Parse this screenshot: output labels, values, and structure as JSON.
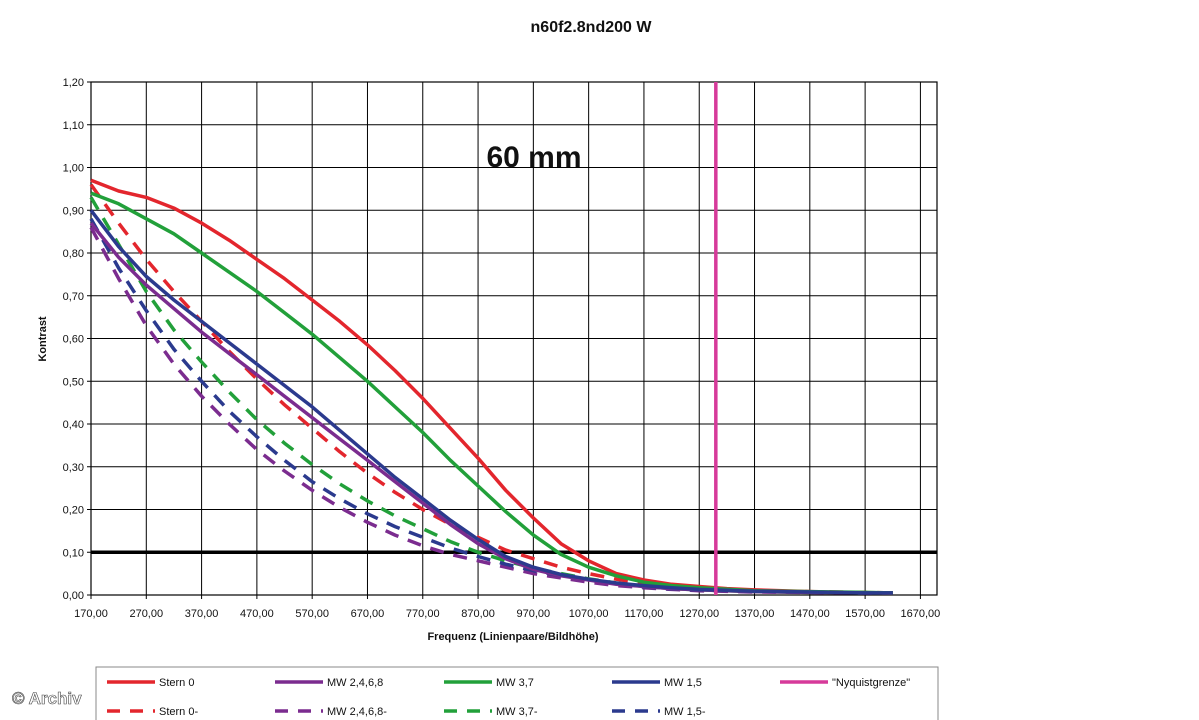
{
  "chart_data": {
    "type": "line",
    "title": "n60f2.8nd200 W",
    "annotation": "60 mm",
    "xlabel": "Frequenz (Linienpaare/Bildhöhe)",
    "ylabel": "Kontrast",
    "xlim": [
      170,
      1700
    ],
    "ylim": [
      0,
      1.2
    ],
    "x_ticks": [
      "170,00",
      "270,00",
      "370,00",
      "470,00",
      "570,00",
      "670,00",
      "770,00",
      "870,00",
      "970,00",
      "1070,00",
      "1170,00",
      "1270,00",
      "1370,00",
      "1470,00",
      "1570,00",
      "1670,00"
    ],
    "y_ticks": [
      "0,00",
      "0,10",
      "0,20",
      "0,30",
      "0,40",
      "0,50",
      "0,60",
      "0,70",
      "0,80",
      "0,90",
      "1,00",
      "1,10",
      "1,20"
    ],
    "grid": true,
    "legend_position": "bottom",
    "series": [
      {
        "name": "Stern 0",
        "color": "#e3262d",
        "dash": false,
        "x": [
          170,
          220,
          270,
          320,
          370,
          420,
          470,
          520,
          570,
          620,
          670,
          720,
          770,
          820,
          870,
          920,
          970,
          1020,
          1070,
          1120,
          1170,
          1220,
          1270,
          1320,
          1370,
          1420,
          1470,
          1520,
          1620
        ],
        "y": [
          0.97,
          0.945,
          0.93,
          0.905,
          0.87,
          0.83,
          0.785,
          0.74,
          0.69,
          0.64,
          0.585,
          0.525,
          0.46,
          0.39,
          0.32,
          0.245,
          0.18,
          0.12,
          0.08,
          0.05,
          0.035,
          0.025,
          0.02,
          0.015,
          0.012,
          0.01,
          0.008,
          0.006,
          0.005
        ]
      },
      {
        "name": "MW 2,4,6,8",
        "color": "#7b2c8f",
        "dash": false,
        "x": [
          170,
          220,
          270,
          320,
          370,
          420,
          470,
          520,
          570,
          620,
          670,
          720,
          770,
          820,
          870,
          920,
          970,
          1020,
          1070,
          1120,
          1170,
          1220,
          1270,
          1370,
          1470,
          1570,
          1620
        ],
        "y": [
          0.87,
          0.79,
          0.725,
          0.67,
          0.615,
          0.565,
          0.515,
          0.465,
          0.415,
          0.365,
          0.315,
          0.265,
          0.215,
          0.165,
          0.12,
          0.085,
          0.06,
          0.045,
          0.035,
          0.025,
          0.02,
          0.015,
          0.012,
          0.008,
          0.006,
          0.005,
          0.005
        ]
      },
      {
        "name": "MW 3,7",
        "color": "#22a03a",
        "dash": false,
        "x": [
          170,
          220,
          270,
          320,
          370,
          420,
          470,
          520,
          570,
          620,
          670,
          720,
          770,
          820,
          870,
          920,
          970,
          1020,
          1070,
          1120,
          1170,
          1220,
          1270,
          1370,
          1470,
          1570,
          1620
        ],
        "y": [
          0.94,
          0.915,
          0.88,
          0.845,
          0.8,
          0.755,
          0.71,
          0.66,
          0.61,
          0.555,
          0.5,
          0.44,
          0.38,
          0.315,
          0.255,
          0.195,
          0.14,
          0.095,
          0.065,
          0.045,
          0.03,
          0.022,
          0.017,
          0.01,
          0.008,
          0.006,
          0.005
        ]
      },
      {
        "name": "MW 1,5",
        "color": "#2b3a8e",
        "dash": false,
        "x": [
          170,
          220,
          270,
          320,
          370,
          420,
          470,
          520,
          570,
          620,
          670,
          720,
          770,
          820,
          870,
          920,
          970,
          1020,
          1070,
          1120,
          1170,
          1220,
          1270,
          1370,
          1470,
          1570,
          1620
        ],
        "y": [
          0.9,
          0.815,
          0.745,
          0.69,
          0.64,
          0.59,
          0.54,
          0.49,
          0.44,
          0.385,
          0.33,
          0.275,
          0.225,
          0.175,
          0.13,
          0.09,
          0.065,
          0.048,
          0.037,
          0.028,
          0.022,
          0.017,
          0.013,
          0.009,
          0.007,
          0.005,
          0.005
        ]
      },
      {
        "name": "\"Nyquistgrenze\"",
        "color": "#d63a9a",
        "dash": false,
        "vertical_at_x": 1300,
        "x": [
          1300,
          1300
        ],
        "y": [
          0,
          1.2
        ]
      },
      {
        "name": "Stern 0-",
        "color": "#e3262d",
        "dash": true,
        "x": [
          170,
          220,
          270,
          320,
          370,
          420,
          470,
          520,
          570,
          620,
          670,
          720,
          770,
          820,
          870,
          920,
          970,
          1020,
          1070,
          1120,
          1170,
          1220,
          1270,
          1370,
          1470,
          1570,
          1620
        ],
        "y": [
          0.96,
          0.87,
          0.785,
          0.71,
          0.64,
          0.57,
          0.505,
          0.445,
          0.39,
          0.335,
          0.285,
          0.24,
          0.2,
          0.165,
          0.135,
          0.105,
          0.085,
          0.065,
          0.05,
          0.037,
          0.027,
          0.02,
          0.015,
          0.01,
          0.008,
          0.006,
          0.005
        ]
      },
      {
        "name": "MW 2,4,6,8-",
        "color": "#7b2c8f",
        "dash": true,
        "x": [
          170,
          220,
          270,
          320,
          370,
          420,
          470,
          520,
          570,
          620,
          670,
          720,
          770,
          820,
          870,
          920,
          970,
          1020,
          1070,
          1120,
          1170,
          1220,
          1270,
          1370,
          1470,
          1570,
          1620
        ],
        "y": [
          0.86,
          0.74,
          0.63,
          0.54,
          0.465,
          0.4,
          0.34,
          0.29,
          0.245,
          0.205,
          0.17,
          0.14,
          0.115,
          0.095,
          0.08,
          0.065,
          0.05,
          0.04,
          0.03,
          0.022,
          0.017,
          0.013,
          0.01,
          0.007,
          0.006,
          0.005,
          0.005
        ]
      },
      {
        "name": "MW 3,7-",
        "color": "#22a03a",
        "dash": true,
        "x": [
          170,
          220,
          270,
          320,
          370,
          420,
          470,
          520,
          570,
          620,
          670,
          720,
          770,
          820,
          870,
          920,
          970,
          1020,
          1070,
          1120,
          1170,
          1220,
          1270,
          1370,
          1470,
          1570,
          1620
        ],
        "y": [
          0.93,
          0.82,
          0.71,
          0.62,
          0.545,
          0.475,
          0.41,
          0.355,
          0.305,
          0.26,
          0.22,
          0.185,
          0.155,
          0.125,
          0.1,
          0.08,
          0.063,
          0.05,
          0.038,
          0.028,
          0.02,
          0.015,
          0.012,
          0.008,
          0.006,
          0.005,
          0.005
        ]
      },
      {
        "name": "MW 1,5-",
        "color": "#2b3a8e",
        "dash": true,
        "x": [
          170,
          220,
          270,
          320,
          370,
          420,
          470,
          520,
          570,
          620,
          670,
          720,
          770,
          820,
          870,
          920,
          970,
          1020,
          1070,
          1120,
          1170,
          1220,
          1270,
          1370,
          1470,
          1570,
          1620
        ],
        "y": [
          0.88,
          0.765,
          0.665,
          0.575,
          0.5,
          0.43,
          0.37,
          0.315,
          0.265,
          0.225,
          0.19,
          0.16,
          0.135,
          0.11,
          0.09,
          0.072,
          0.057,
          0.045,
          0.035,
          0.026,
          0.019,
          0.014,
          0.011,
          0.008,
          0.006,
          0.005,
          0.005
        ]
      }
    ],
    "reference_line": {
      "y": 0.1,
      "color": "#000000"
    }
  },
  "watermark": "© Archiv"
}
